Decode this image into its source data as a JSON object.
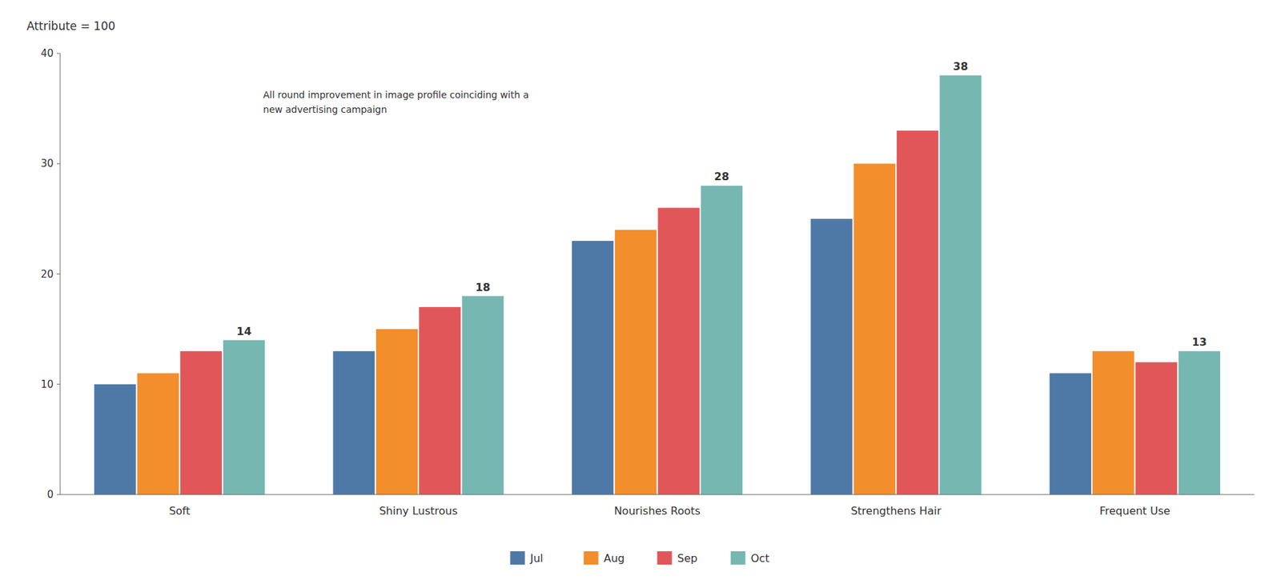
{
  "chart_data": {
    "type": "bar",
    "y_label": "Attribute = 100",
    "annotation": "All round improvement in image profile coinciding with a\nnew advertising campaign",
    "categories": [
      "Soft",
      "Shiny Lustrous",
      "Nourishes Roots",
      "Strengthens Hair",
      "Frequent Use"
    ],
    "series": [
      {
        "name": "Jul",
        "color": "#4e79a7",
        "values": [
          10,
          13,
          23,
          25,
          11
        ]
      },
      {
        "name": "Aug",
        "color": "#f28e2b",
        "values": [
          11,
          15,
          24,
          30,
          13
        ]
      },
      {
        "name": "Sep",
        "color": "#e15759",
        "values": [
          13,
          17,
          26,
          33,
          12
        ]
      },
      {
        "name": "Oct",
        "color": "#76b7b2",
        "values": [
          14,
          18,
          28,
          38,
          13
        ],
        "data_labels": true
      }
    ],
    "ylim": [
      0,
      40
    ],
    "yticks": [
      0,
      10,
      20,
      30,
      40
    ],
    "grid": false,
    "legend": "bottom"
  }
}
